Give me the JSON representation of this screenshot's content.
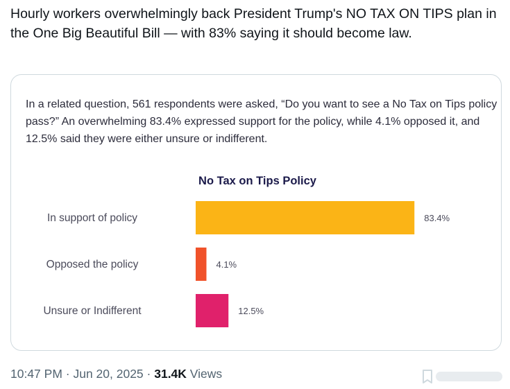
{
  "tweet": {
    "text": "Hourly workers overwhelmingly back President Trump's NO TAX ON TIPS plan in the One Big Beautiful Bill — with 83% saying it should become law."
  },
  "card": {
    "intro": "In a related question, 561 respondents were asked, “Do you want to see a No Tax on Tips policy pass?” An overwhelming 83.4% expressed support for the policy, while 4.1% opposed it, and 12.5% said they were either unsure or indifferent."
  },
  "chart_data": {
    "type": "bar",
    "orientation": "horizontal",
    "title": "No Tax on Tips Policy",
    "categories": [
      "In support of policy",
      "Opposed the policy",
      "Unsure or Indifferent"
    ],
    "values": [
      83.4,
      4.1,
      12.5
    ],
    "labels": [
      "83.4%",
      "4.1%",
      "12.5%"
    ],
    "colors": [
      "#fbb416",
      "#f0522a",
      "#e0216b"
    ],
    "xlim": [
      0,
      100
    ],
    "xlabel": "",
    "ylabel": "",
    "grid": false
  },
  "footer": {
    "time": "10:47 PM",
    "separator1": " · ",
    "date": "Jun 20, 2025",
    "separator2": " · ",
    "views_count": "31.4K",
    "views_label": " Views"
  },
  "icons": {
    "bookmark": "bookmark-icon"
  }
}
